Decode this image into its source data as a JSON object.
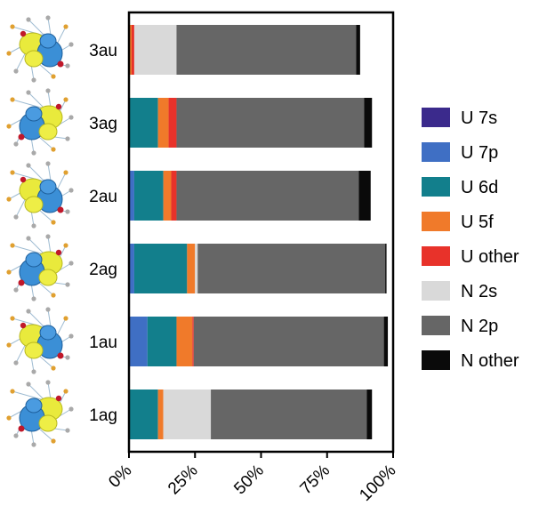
{
  "chart_data": {
    "type": "bar",
    "orientation": "horizontal",
    "stacked": true,
    "categories": [
      "3au",
      "3ag",
      "2au",
      "2ag",
      "1au",
      "1ag"
    ],
    "xlim": [
      0,
      100
    ],
    "xticks": [
      "0%",
      "25%",
      "50%",
      "75%",
      "100%"
    ],
    "grid": false,
    "legend_position": "right",
    "series": [
      {
        "name": "U 7s",
        "color": "#3b2a8c",
        "values": [
          0,
          0,
          0,
          0,
          0,
          0
        ]
      },
      {
        "name": "U 7p",
        "color": "#3f6fc4",
        "values": [
          0,
          0,
          2,
          2,
          7,
          0
        ]
      },
      {
        "name": "U 6d",
        "color": "#127f8c",
        "values": [
          0,
          11,
          11,
          20,
          11,
          11
        ]
      },
      {
        "name": "U 5f",
        "color": "#f07a2a",
        "values": [
          1,
          4,
          3,
          3,
          6,
          2
        ]
      },
      {
        "name": "U other",
        "color": "#e8322a",
        "values": [
          1,
          3,
          2,
          0,
          0.5,
          0
        ]
      },
      {
        "name": "N 2s",
        "color": "#d9d9d9",
        "values": [
          16,
          0,
          0,
          1,
          0,
          18
        ]
      },
      {
        "name": "N 2p",
        "color": "#666666",
        "values": [
          68,
          71,
          69,
          71,
          72,
          59
        ]
      },
      {
        "name": "N other",
        "color": "#0a0a0a",
        "values": [
          1.5,
          3,
          4.5,
          0.5,
          1.5,
          2
        ]
      }
    ]
  },
  "orbital_images": [
    {
      "name": "orbital-3au",
      "icon": "isosurface-yellow-blue"
    },
    {
      "name": "orbital-3ag",
      "icon": "isosurface-yellow-blue"
    },
    {
      "name": "orbital-2au",
      "icon": "isosurface-yellow-blue"
    },
    {
      "name": "orbital-2ag",
      "icon": "isosurface-yellow-blue"
    },
    {
      "name": "orbital-1au",
      "icon": "isosurface-yellow-blue"
    },
    {
      "name": "orbital-1ag",
      "icon": "isosurface-yellow-blue"
    }
  ]
}
